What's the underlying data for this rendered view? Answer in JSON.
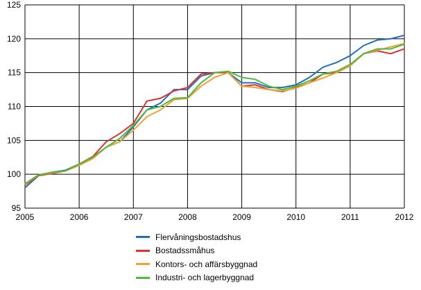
{
  "chart_data": {
    "type": "line",
    "xlim": [
      2005,
      2012
    ],
    "ylim": [
      95,
      125
    ],
    "x_ticks": [
      "2005",
      "2006",
      "2007",
      "2008",
      "2009",
      "2010",
      "2011",
      "2012"
    ],
    "y_ticks": [
      "95",
      "100",
      "105",
      "110",
      "115",
      "120",
      "125"
    ],
    "grid": true,
    "legend_position": "bottom",
    "x": [
      2005.0,
      2005.25,
      2005.5,
      2005.75,
      2006.0,
      2006.25,
      2006.5,
      2006.75,
      2007.0,
      2007.25,
      2007.5,
      2007.75,
      2008.0,
      2008.25,
      2008.5,
      2008.75,
      2009.0,
      2009.25,
      2009.5,
      2009.75,
      2010.0,
      2010.25,
      2010.5,
      2010.75,
      2011.0,
      2011.25,
      2011.5,
      2011.75,
      2012.0
    ],
    "series": [
      {
        "name": "Flervåningsbostadshus",
        "color": "#1f6fbf",
        "values": [
          98.0,
          99.8,
          100.3,
          100.6,
          101.5,
          102.5,
          104.0,
          104.8,
          107.0,
          109.5,
          110.5,
          112.5,
          112.5,
          114.5,
          115.0,
          115.0,
          113.5,
          113.5,
          112.8,
          112.8,
          113.2,
          114.3,
          115.8,
          116.5,
          117.5,
          119.0,
          119.8,
          120.0,
          120.5
        ]
      },
      {
        "name": "Bostadssmåhus",
        "color": "#e03030",
        "values": [
          98.4,
          99.8,
          100.1,
          100.5,
          101.5,
          102.6,
          104.8,
          106.0,
          107.5,
          110.8,
          111.2,
          112.3,
          112.8,
          114.8,
          115.0,
          115.0,
          113.0,
          113.2,
          112.5,
          112.2,
          112.8,
          113.5,
          114.8,
          115.0,
          116.0,
          117.8,
          118.2,
          117.8,
          118.5
        ]
      },
      {
        "name": "Kontors- och affärsbyggnad",
        "color": "#f4a030",
        "values": [
          98.5,
          99.9,
          100.2,
          100.5,
          101.3,
          102.3,
          104.0,
          104.8,
          106.5,
          108.5,
          109.5,
          111.0,
          111.2,
          113.0,
          114.3,
          115.0,
          113.0,
          112.8,
          112.5,
          112.3,
          112.7,
          113.5,
          114.2,
          115.0,
          116.0,
          117.8,
          118.3,
          118.8,
          119.3
        ]
      },
      {
        "name": "Industri- och lagerbyggnad",
        "color": "#4cbb3c",
        "values": [
          98.6,
          99.9,
          100.3,
          100.5,
          101.5,
          102.5,
          104.0,
          105.3,
          107.2,
          109.5,
          110.0,
          111.2,
          111.3,
          113.5,
          115.0,
          115.2,
          114.3,
          114.0,
          113.0,
          112.5,
          113.0,
          113.8,
          114.8,
          115.2,
          116.2,
          117.8,
          118.5,
          118.5,
          119.2
        ]
      }
    ]
  }
}
